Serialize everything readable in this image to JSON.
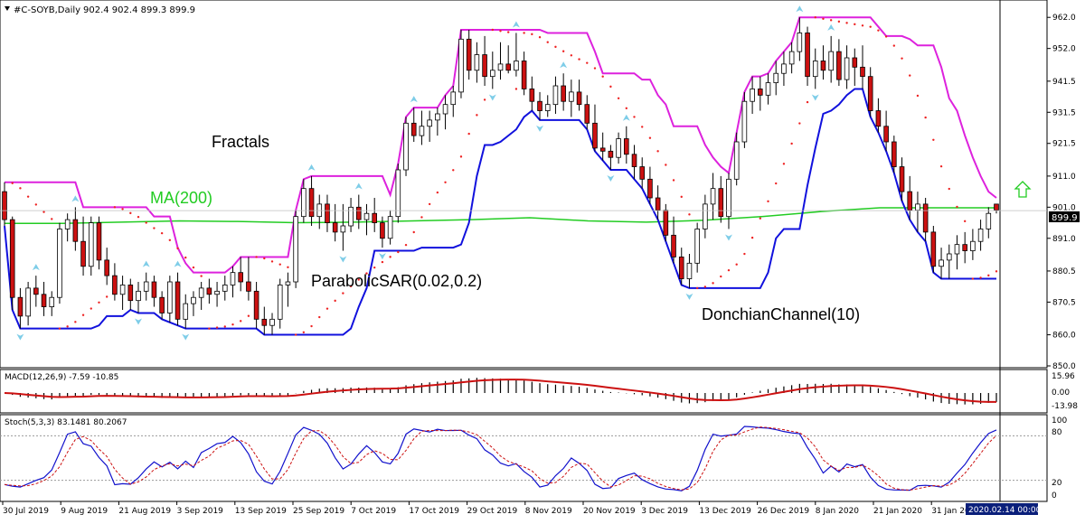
{
  "header": {
    "symbol": "#C-SOYB,Daily",
    "ohlc": "902.4 902.4 899.3 899.9",
    "dropdown_icon": "triangle-down-icon"
  },
  "annotations": {
    "fractals": "Fractals",
    "ma": "MA(200)",
    "sar": "ParabolicSAR(0.02,0.2)",
    "donchian": "DonchianChannel(10)"
  },
  "colors": {
    "bull_candle": "#ffffff",
    "bear_candle": "#cc1111",
    "candle_outline": "#000000",
    "ma": "#22cc22",
    "donchian_upper": "#dd22dd",
    "donchian_lower": "#1111dd",
    "sar": "#ee2222",
    "fractal": "#7ecde8",
    "macd_hist": "#000000",
    "macd_signal": "#cc1111",
    "stoch_main": "#1111cc",
    "stoch_signal": "#cc1111",
    "up_arrow": "#22cc22",
    "price_tag_bg": "#000000"
  },
  "up_arrow_icon": "up-arrow-icon",
  "price_axis": {
    "ticks": [
      "962.0",
      "952.0",
      "941.5",
      "931.5",
      "921.5",
      "911.0",
      "901.0",
      "891.0",
      "880.5",
      "870.5",
      "860.0",
      "850.0"
    ],
    "current_price": "899.9"
  },
  "macd": {
    "label": "MACD(12,26,9) -7.59 -10.85",
    "ticks": [
      "15.96",
      "0.00",
      "-13.98"
    ]
  },
  "stoch": {
    "label": "Stoch(5,3,3) 83.1481 80.2067",
    "ticks": [
      "100",
      "80",
      "20",
      "0"
    ]
  },
  "time_axis": {
    "labels": [
      "30 Jul 2019",
      "9 Aug 2019",
      "21 Aug 2019",
      "3 Sep 2019",
      "13 Sep 2019",
      "25 Sep 2019",
      "7 Oct 2019",
      "17 Oct 2019",
      "29 Oct 2019",
      "8 Nov 2019",
      "20 Nov 2019",
      "3 Dec 2019",
      "13 Dec 2019",
      "26 Dec 2019",
      "8 Jan 2020",
      "21 Jan 2020",
      "31 Jan 20"
    ],
    "cursor_label": "2020.02.14 00:00"
  },
  "chart_data": {
    "type": "candlestick",
    "ylim": [
      850,
      967
    ],
    "ma200_level": [
      895.8,
      895.8,
      896.2,
      896.6,
      896.4,
      896.0,
      896.2,
      896.6,
      897.0,
      897.6,
      896.6,
      896.2,
      896.8,
      898.0,
      899.6,
      900.8,
      900.8,
      900.8
    ],
    "candles": [
      [
        906,
        909,
        895,
        897
      ],
      [
        897,
        898,
        868,
        872
      ],
      [
        872,
        875,
        862,
        866
      ],
      [
        866,
        877,
        863,
        875
      ],
      [
        875,
        879,
        869,
        873
      ],
      [
        873,
        877,
        866,
        869
      ],
      [
        869,
        874,
        866,
        872
      ],
      [
        872,
        896,
        870,
        894
      ],
      [
        894,
        899,
        890,
        897
      ],
      [
        897,
        901,
        887,
        890
      ],
      [
        890,
        898,
        879,
        882
      ],
      [
        882,
        898,
        879,
        896
      ],
      [
        896,
        898,
        881,
        884
      ],
      [
        884,
        888,
        876,
        879
      ],
      [
        879,
        883,
        871,
        873
      ],
      [
        873,
        879,
        868,
        876
      ],
      [
        876,
        878,
        868,
        871
      ],
      [
        871,
        877,
        867,
        874
      ],
      [
        874,
        880,
        871,
        877
      ],
      [
        877,
        879,
        869,
        872
      ],
      [
        872,
        874,
        865,
        867
      ],
      [
        867,
        879,
        864,
        877
      ],
      [
        877,
        880,
        863,
        865
      ],
      [
        865,
        873,
        862,
        870
      ],
      [
        870,
        874,
        866,
        872
      ],
      [
        872,
        877,
        868,
        875
      ],
      [
        875,
        878,
        870,
        873
      ],
      [
        873,
        877,
        869,
        874
      ],
      [
        874,
        879,
        871,
        876
      ],
      [
        876,
        882,
        872,
        880
      ],
      [
        880,
        885,
        874,
        877
      ],
      [
        877,
        885,
        871,
        874
      ],
      [
        874,
        877,
        862,
        865
      ],
      [
        865,
        869,
        860,
        863
      ],
      [
        863,
        867,
        860,
        865
      ],
      [
        865,
        878,
        862,
        876
      ],
      [
        876,
        880,
        869,
        877
      ],
      [
        877,
        900,
        875,
        898
      ],
      [
        898,
        910,
        896,
        907
      ],
      [
        907,
        911,
        895,
        898
      ],
      [
        898,
        905,
        894,
        902
      ],
      [
        902,
        905,
        893,
        896
      ],
      [
        896,
        902,
        890,
        893
      ],
      [
        893,
        902,
        887,
        895
      ],
      [
        895,
        904,
        893,
        901
      ],
      [
        901,
        905,
        894,
        897
      ],
      [
        897,
        902,
        892,
        899
      ],
      [
        899,
        904,
        893,
        896
      ],
      [
        896,
        898,
        888,
        891
      ],
      [
        891,
        900,
        889,
        898
      ],
      [
        898,
        915,
        896,
        913
      ],
      [
        913,
        930,
        911,
        928
      ],
      [
        928,
        933,
        922,
        924
      ],
      [
        924,
        932,
        921,
        927
      ],
      [
        927,
        932,
        922,
        929
      ],
      [
        929,
        933,
        924,
        931
      ],
      [
        931,
        937,
        926,
        934
      ],
      [
        934,
        940,
        930,
        938
      ],
      [
        938,
        958,
        936,
        955
      ],
      [
        955,
        958,
        942,
        945
      ],
      [
        945,
        954,
        941,
        950
      ],
      [
        950,
        956,
        940,
        943
      ],
      [
        943,
        951,
        939,
        945
      ],
      [
        945,
        954,
        942,
        947
      ],
      [
        947,
        953,
        944,
        945
      ],
      [
        945,
        957,
        943,
        948
      ],
      [
        948,
        951,
        937,
        939
      ],
      [
        939,
        943,
        932,
        935
      ],
      [
        935,
        938,
        929,
        932
      ],
      [
        932,
        937,
        930,
        934
      ],
      [
        934,
        943,
        931,
        940
      ],
      [
        940,
        944,
        932,
        935
      ],
      [
        935,
        942,
        930,
        938
      ],
      [
        938,
        942,
        932,
        934
      ],
      [
        934,
        937,
        926,
        928
      ],
      [
        928,
        934,
        919,
        920
      ],
      [
        920,
        925,
        916,
        919
      ],
      [
        919,
        921,
        913,
        917
      ],
      [
        917,
        925,
        915,
        923
      ],
      [
        923,
        927,
        915,
        918
      ],
      [
        918,
        921,
        910,
        914
      ],
      [
        914,
        917,
        907,
        910
      ],
      [
        910,
        914,
        902,
        904
      ],
      [
        904,
        908,
        897,
        900
      ],
      [
        900,
        902,
        890,
        892
      ],
      [
        892,
        898,
        883,
        885
      ],
      [
        885,
        888,
        876,
        878
      ],
      [
        878,
        886,
        875,
        883
      ],
      [
        883,
        896,
        880,
        894
      ],
      [
        894,
        905,
        891,
        902
      ],
      [
        902,
        912,
        897,
        907
      ],
      [
        907,
        911,
        896,
        898
      ],
      [
        898,
        912,
        894,
        910
      ],
      [
        910,
        925,
        908,
        922
      ],
      [
        922,
        938,
        920,
        935
      ],
      [
        935,
        943,
        931,
        939
      ],
      [
        939,
        943,
        932,
        937
      ],
      [
        937,
        944,
        934,
        941
      ],
      [
        941,
        948,
        937,
        944
      ],
      [
        944,
        951,
        940,
        947
      ],
      [
        947,
        954,
        944,
        951
      ],
      [
        951,
        962,
        948,
        957
      ],
      [
        957,
        959,
        940,
        943
      ],
      [
        943,
        952,
        939,
        948
      ],
      [
        948,
        953,
        942,
        945
      ],
      [
        945,
        956,
        941,
        951
      ],
      [
        951,
        955,
        940,
        942
      ],
      [
        942,
        953,
        939,
        949
      ],
      [
        949,
        952,
        940,
        946
      ],
      [
        946,
        953,
        939,
        943
      ],
      [
        943,
        946,
        930,
        932
      ],
      [
        932,
        936,
        925,
        927
      ],
      [
        927,
        932,
        919,
        922
      ],
      [
        922,
        924,
        912,
        914
      ],
      [
        914,
        917,
        903,
        906
      ],
      [
        906,
        911,
        897,
        900
      ],
      [
        900,
        906,
        893,
        902
      ],
      [
        902,
        904,
        890,
        893
      ],
      [
        893,
        895,
        880,
        882
      ],
      [
        882,
        888,
        878,
        884
      ],
      [
        884,
        889,
        878,
        886
      ],
      [
        886,
        892,
        881,
        889
      ],
      [
        889,
        893,
        883,
        887
      ],
      [
        887,
        894,
        884,
        890
      ],
      [
        890,
        897,
        887,
        894
      ],
      [
        894,
        901,
        891,
        899
      ],
      [
        902,
        902,
        899,
        900
      ]
    ]
  }
}
